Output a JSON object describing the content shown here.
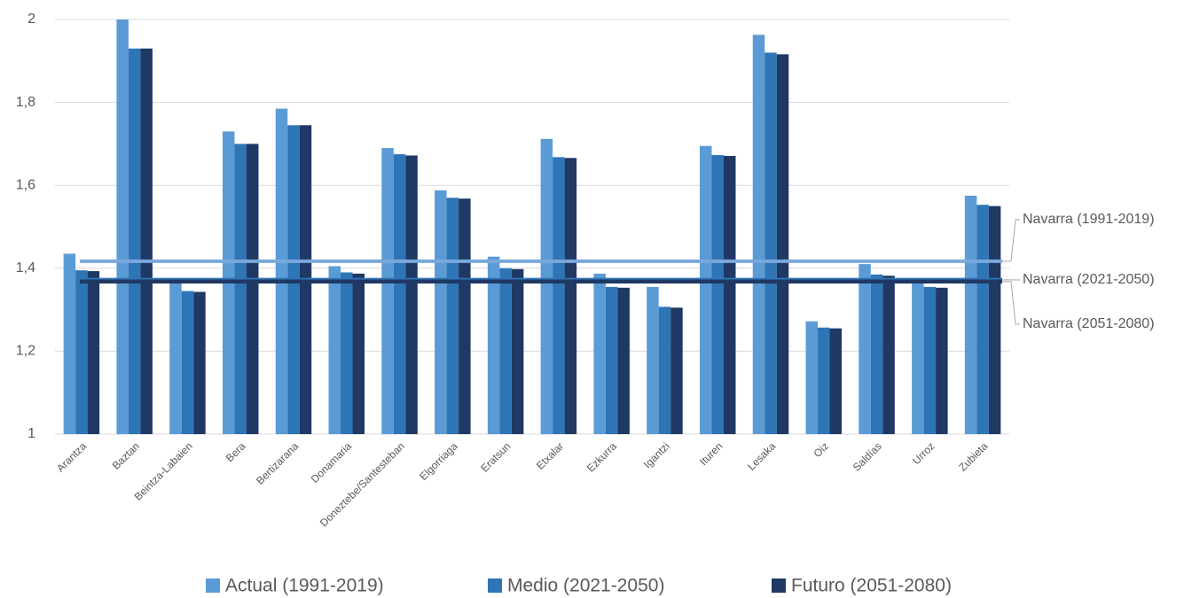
{
  "chart_data": {
    "type": "bar",
    "categories": [
      "Arantza",
      "Baztan",
      "Beintza-Labaien",
      "Bera",
      "Bertizarana",
      "Donamaria",
      "Doneztebe/Santesteban",
      "Elgorriaga",
      "Eratsun",
      "Etxalar",
      "Ezkurra",
      "Igantzi",
      "Ituren",
      "Lesaka",
      "Oiz",
      "Saldías",
      "Urroz",
      "Zubieta"
    ],
    "series": [
      {
        "name": "Actual (1991-2019)",
        "color": "#5b9bd5",
        "values": [
          1.435,
          2.0,
          1.37,
          1.73,
          1.785,
          1.405,
          1.69,
          1.588,
          1.428,
          1.712,
          1.387,
          1.355,
          1.695,
          1.963,
          1.272,
          1.41,
          1.375,
          1.575
        ]
      },
      {
        "name": "Medio (2021-2050)",
        "color": "#2e75b6",
        "values": [
          1.395,
          1.93,
          1.345,
          1.7,
          1.745,
          1.39,
          1.675,
          1.57,
          1.4,
          1.668,
          1.355,
          1.307,
          1.673,
          1.92,
          1.257,
          1.385,
          1.355,
          1.553
        ]
      },
      {
        "name": "Futuro (2051-2080)",
        "color": "#1f3864",
        "values": [
          1.393,
          1.93,
          1.343,
          1.7,
          1.745,
          1.387,
          1.672,
          1.568,
          1.398,
          1.666,
          1.353,
          1.305,
          1.671,
          1.916,
          1.255,
          1.382,
          1.353,
          1.55
        ]
      }
    ],
    "reference_lines": [
      {
        "name": "Navarra (1991-2019)",
        "color": "#7aa8dc",
        "value": 1.417
      },
      {
        "name": "Navarra (2021-2050)",
        "color": "#2e75b6",
        "value": 1.372
      },
      {
        "name": "Navarra (2051-2080)",
        "color": "#1f3864",
        "value": 1.368
      }
    ],
    "ylim": [
      1,
      2
    ],
    "yticks": [
      1,
      {
        "value": 1.2,
        "label": "1,2"
      },
      {
        "value": 1.4,
        "label": "1,4"
      },
      {
        "value": 1.6,
        "label": "1,6"
      },
      {
        "value": 1.8,
        "label": "1,8"
      },
      2
    ],
    "grid": true
  }
}
